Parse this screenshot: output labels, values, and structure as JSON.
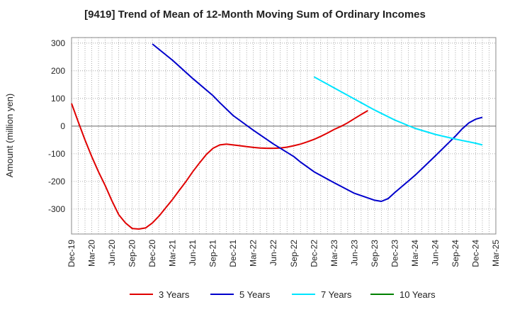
{
  "chart_data": {
    "type": "line",
    "title": "[9419]  Trend of Mean of 12-Month Moving Sum of Ordinary Incomes",
    "xlabel": "",
    "ylabel": "Amount (million yen)",
    "ylim": [
      -390,
      320
    ],
    "yticks": [
      300,
      200,
      100,
      0,
      -100,
      -200,
      -300
    ],
    "categories": [
      "Dec-19",
      "Mar-20",
      "Jun-20",
      "Sep-20",
      "Dec-20",
      "Mar-21",
      "Jun-21",
      "Sep-21",
      "Dec-21",
      "Mar-22",
      "Jun-22",
      "Sep-22",
      "Dec-22",
      "Mar-23",
      "Jun-23",
      "Sep-23",
      "Dec-23",
      "Mar-24",
      "Jun-24",
      "Sep-24",
      "Dec-24",
      "Mar-25"
    ],
    "grid": true,
    "legend_position": "bottom",
    "series": [
      {
        "name": "3 Years",
        "color": "#e00000",
        "points": [
          [
            0,
            82
          ],
          [
            1,
            15
          ],
          [
            2,
            -50
          ],
          [
            3,
            -110
          ],
          [
            4,
            -165
          ],
          [
            5,
            -215
          ],
          [
            6,
            -270
          ],
          [
            7,
            -320
          ],
          [
            8,
            -350
          ],
          [
            9,
            -370
          ],
          [
            10,
            -372
          ],
          [
            11,
            -368
          ],
          [
            12,
            -350
          ],
          [
            13,
            -325
          ],
          [
            14,
            -295
          ],
          [
            15,
            -265
          ],
          [
            16,
            -232
          ],
          [
            17,
            -200
          ],
          [
            18,
            -165
          ],
          [
            19,
            -133
          ],
          [
            20,
            -103
          ],
          [
            21,
            -80
          ],
          [
            22,
            -68
          ],
          [
            23,
            -65
          ],
          [
            24,
            -68
          ],
          [
            25,
            -71
          ],
          [
            26,
            -74
          ],
          [
            27,
            -77
          ],
          [
            28,
            -79
          ],
          [
            29,
            -80
          ],
          [
            30,
            -80
          ],
          [
            31,
            -79
          ],
          [
            32,
            -76
          ],
          [
            33,
            -71
          ],
          [
            34,
            -65
          ],
          [
            35,
            -57
          ],
          [
            36,
            -48
          ],
          [
            37,
            -37
          ],
          [
            38,
            -25
          ],
          [
            39,
            -12
          ],
          [
            40,
            -1
          ],
          [
            41,
            12
          ],
          [
            42,
            27
          ],
          [
            43,
            42
          ],
          [
            44,
            56
          ]
        ]
      },
      {
        "name": "5 Years",
        "color": "#0000cc",
        "points": [
          [
            12,
            297
          ],
          [
            15,
            238
          ],
          [
            18,
            172
          ],
          [
            21,
            110
          ],
          [
            22,
            85
          ],
          [
            24,
            38
          ],
          [
            27,
            -15
          ],
          [
            30,
            -65
          ],
          [
            33,
            -110
          ],
          [
            34,
            -130
          ],
          [
            36,
            -165
          ],
          [
            39,
            -205
          ],
          [
            42,
            -243
          ],
          [
            45,
            -268
          ],
          [
            46,
            -272
          ],
          [
            47,
            -262
          ],
          [
            48,
            -240
          ],
          [
            51,
            -178
          ],
          [
            54,
            -108
          ],
          [
            57,
            -36
          ],
          [
            58,
            -10
          ],
          [
            59,
            12
          ],
          [
            60,
            25
          ],
          [
            61,
            32
          ]
        ]
      },
      {
        "name": "7 Years",
        "color": "#00e5ff",
        "points": [
          [
            36,
            178
          ],
          [
            39,
            138
          ],
          [
            42,
            98
          ],
          [
            45,
            58
          ],
          [
            48,
            22
          ],
          [
            51,
            -8
          ],
          [
            54,
            -30
          ],
          [
            57,
            -47
          ],
          [
            60,
            -62
          ],
          [
            61,
            -68
          ]
        ]
      },
      {
        "name": "10 Years",
        "color": "#008000",
        "points": []
      }
    ]
  }
}
